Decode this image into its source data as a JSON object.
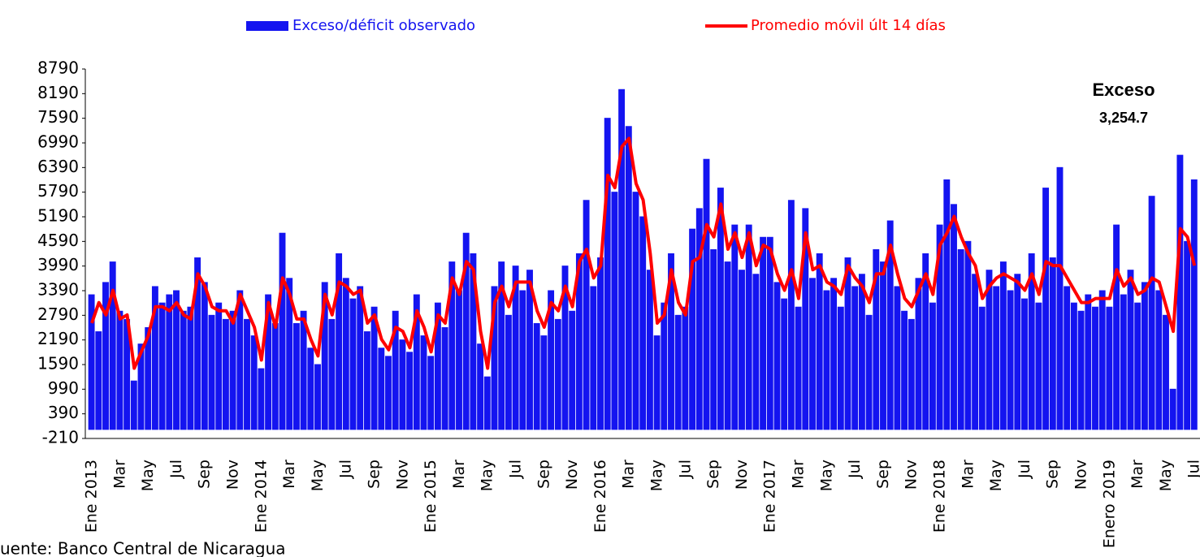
{
  "chart_data": {
    "type": "bar",
    "categories": [
      "Ene 2013",
      null,
      null,
      null,
      "Mar",
      null,
      null,
      null,
      "May",
      null,
      null,
      null,
      "Jul",
      null,
      null,
      null,
      "Sep",
      null,
      null,
      null,
      "Nov",
      null,
      null,
      null,
      "Ene 2014",
      null,
      null,
      null,
      "Mar",
      null,
      null,
      null,
      "May",
      null,
      null,
      null,
      "Jul",
      null,
      null,
      null,
      "Sep",
      null,
      null,
      null,
      "Nov",
      null,
      null,
      null,
      "Ene 2015",
      null,
      null,
      null,
      "Mar",
      null,
      null,
      null,
      "May",
      null,
      null,
      null,
      "Jul",
      null,
      null,
      null,
      "Sep",
      null,
      null,
      null,
      "Nov",
      null,
      null,
      null,
      "Ene 2016",
      null,
      null,
      null,
      "Mar",
      null,
      null,
      null,
      "May",
      null,
      null,
      null,
      "Jul",
      null,
      null,
      null,
      "Sep",
      null,
      null,
      null,
      "Nov",
      null,
      null,
      null,
      "Ene 2017",
      null,
      null,
      null,
      "Mar",
      null,
      null,
      null,
      "May",
      null,
      null,
      null,
      "Jul",
      null,
      null,
      null,
      "Sep",
      null,
      null,
      null,
      "Nov",
      null,
      null,
      null,
      "Ene 2018",
      null,
      null,
      null,
      "Mar",
      null,
      null,
      null,
      "May",
      null,
      null,
      null,
      "Jul",
      null,
      null,
      null,
      "Sep",
      null,
      null,
      null,
      "Nov",
      null,
      null,
      null,
      "Enero 2019",
      null,
      null,
      null,
      "Mar",
      null,
      null,
      null,
      "May",
      null,
      null,
      null,
      "Jul"
    ],
    "series": [
      {
        "name": "Exceso/déficit observado",
        "color": "#1414f0",
        "type": "bar",
        "values": [
          3300,
          2400,
          3600,
          4100,
          2900,
          2700,
          1200,
          2100,
          2500,
          3500,
          3100,
          3300,
          3400,
          2900,
          3000,
          4200,
          3600,
          2800,
          3100,
          2700,
          2900,
          3400,
          2700,
          2300,
          1500,
          3300,
          2600,
          4800,
          3700,
          2600,
          2900,
          2000,
          1600,
          3600,
          2700,
          4300,
          3700,
          3200,
          3500,
          2400,
          3000,
          2000,
          1800,
          2900,
          2200,
          1900,
          3300,
          2300,
          1800,
          3100,
          2500,
          4100,
          3400,
          4800,
          4300,
          2100,
          1300,
          3500,
          4100,
          2800,
          4000,
          3400,
          3900,
          2600,
          2300,
          3400,
          2700,
          4000,
          2900,
          4300,
          5600,
          3500,
          4200,
          7600,
          5800,
          8300,
          7400,
          5800,
          5200,
          3900,
          2300,
          3100,
          4300,
          2800,
          3000,
          4900,
          5400,
          6600,
          4400,
          5900,
          4100,
          5000,
          3900,
          5000,
          3800,
          4700,
          4700,
          3600,
          3200,
          5600,
          3000,
          5400,
          3700,
          4300,
          3400,
          3700,
          3000,
          4200,
          3500,
          3800,
          2800,
          4400,
          4100,
          5100,
          3500,
          2900,
          2700,
          3700,
          4300,
          3100,
          5000,
          6100,
          5500,
          4400,
          4600,
          3800,
          3000,
          3900,
          3500,
          4100,
          3400,
          3800,
          3200,
          4300,
          3100,
          5900,
          4200,
          6400,
          3500,
          3100,
          2900,
          3300,
          3000,
          3400,
          3000,
          5000,
          3300,
          3900,
          3100,
          3600,
          5700,
          3400,
          2800,
          1000,
          6700,
          4600,
          6100
        ]
      },
      {
        "name": "Promedio móvil últ 14 días",
        "color": "#ff0000",
        "type": "line",
        "values": [
          2600,
          3100,
          2800,
          3400,
          2700,
          2800,
          1500,
          1900,
          2300,
          3000,
          3000,
          2900,
          3100,
          2800,
          2700,
          3800,
          3500,
          3000,
          2900,
          2900,
          2600,
          3300,
          2900,
          2500,
          1700,
          3100,
          2500,
          3700,
          3300,
          2700,
          2700,
          2200,
          1800,
          3300,
          2800,
          3600,
          3500,
          3300,
          3400,
          2600,
          2800,
          2200,
          1950,
          2500,
          2400,
          2000,
          2900,
          2500,
          1900,
          2800,
          2600,
          3700,
          3300,
          4100,
          3900,
          2400,
          1500,
          3100,
          3500,
          3000,
          3600,
          3600,
          3600,
          2900,
          2500,
          3100,
          2900,
          3500,
          3000,
          4100,
          4400,
          3700,
          4000,
          6200,
          5900,
          6900,
          7100,
          6000,
          5600,
          4300,
          2600,
          2800,
          3900,
          3100,
          2800,
          4100,
          4200,
          5000,
          4700,
          5500,
          4400,
          4800,
          4200,
          4800,
          4000,
          4500,
          4400,
          3800,
          3400,
          3900,
          3200,
          4800,
          3900,
          4000,
          3600,
          3500,
          3300,
          4000,
          3700,
          3500,
          3100,
          3800,
          3800,
          4500,
          3800,
          3200,
          3000,
          3400,
          3800,
          3300,
          4500,
          4800,
          5200,
          4700,
          4300,
          4000,
          3200,
          3500,
          3700,
          3800,
          3700,
          3600,
          3400,
          3800,
          3300,
          4100,
          4000,
          4000,
          3700,
          3400,
          3100,
          3100,
          3200,
          3200,
          3200,
          3900,
          3500,
          3700,
          3300,
          3400,
          3700,
          3600,
          3000,
          2400,
          4900,
          4700,
          4000
        ]
      }
    ],
    "ylim": [
      -210,
      8790
    ],
    "yticks": [
      -210,
      390,
      990,
      1590,
      2190,
      2790,
      3390,
      3990,
      4590,
      5190,
      5790,
      6390,
      6990,
      7590,
      8190,
      8790
    ],
    "annotations": [
      "Exceso",
      "3,254.7"
    ],
    "source": "uente: Banco Central de Nicaragua"
  }
}
